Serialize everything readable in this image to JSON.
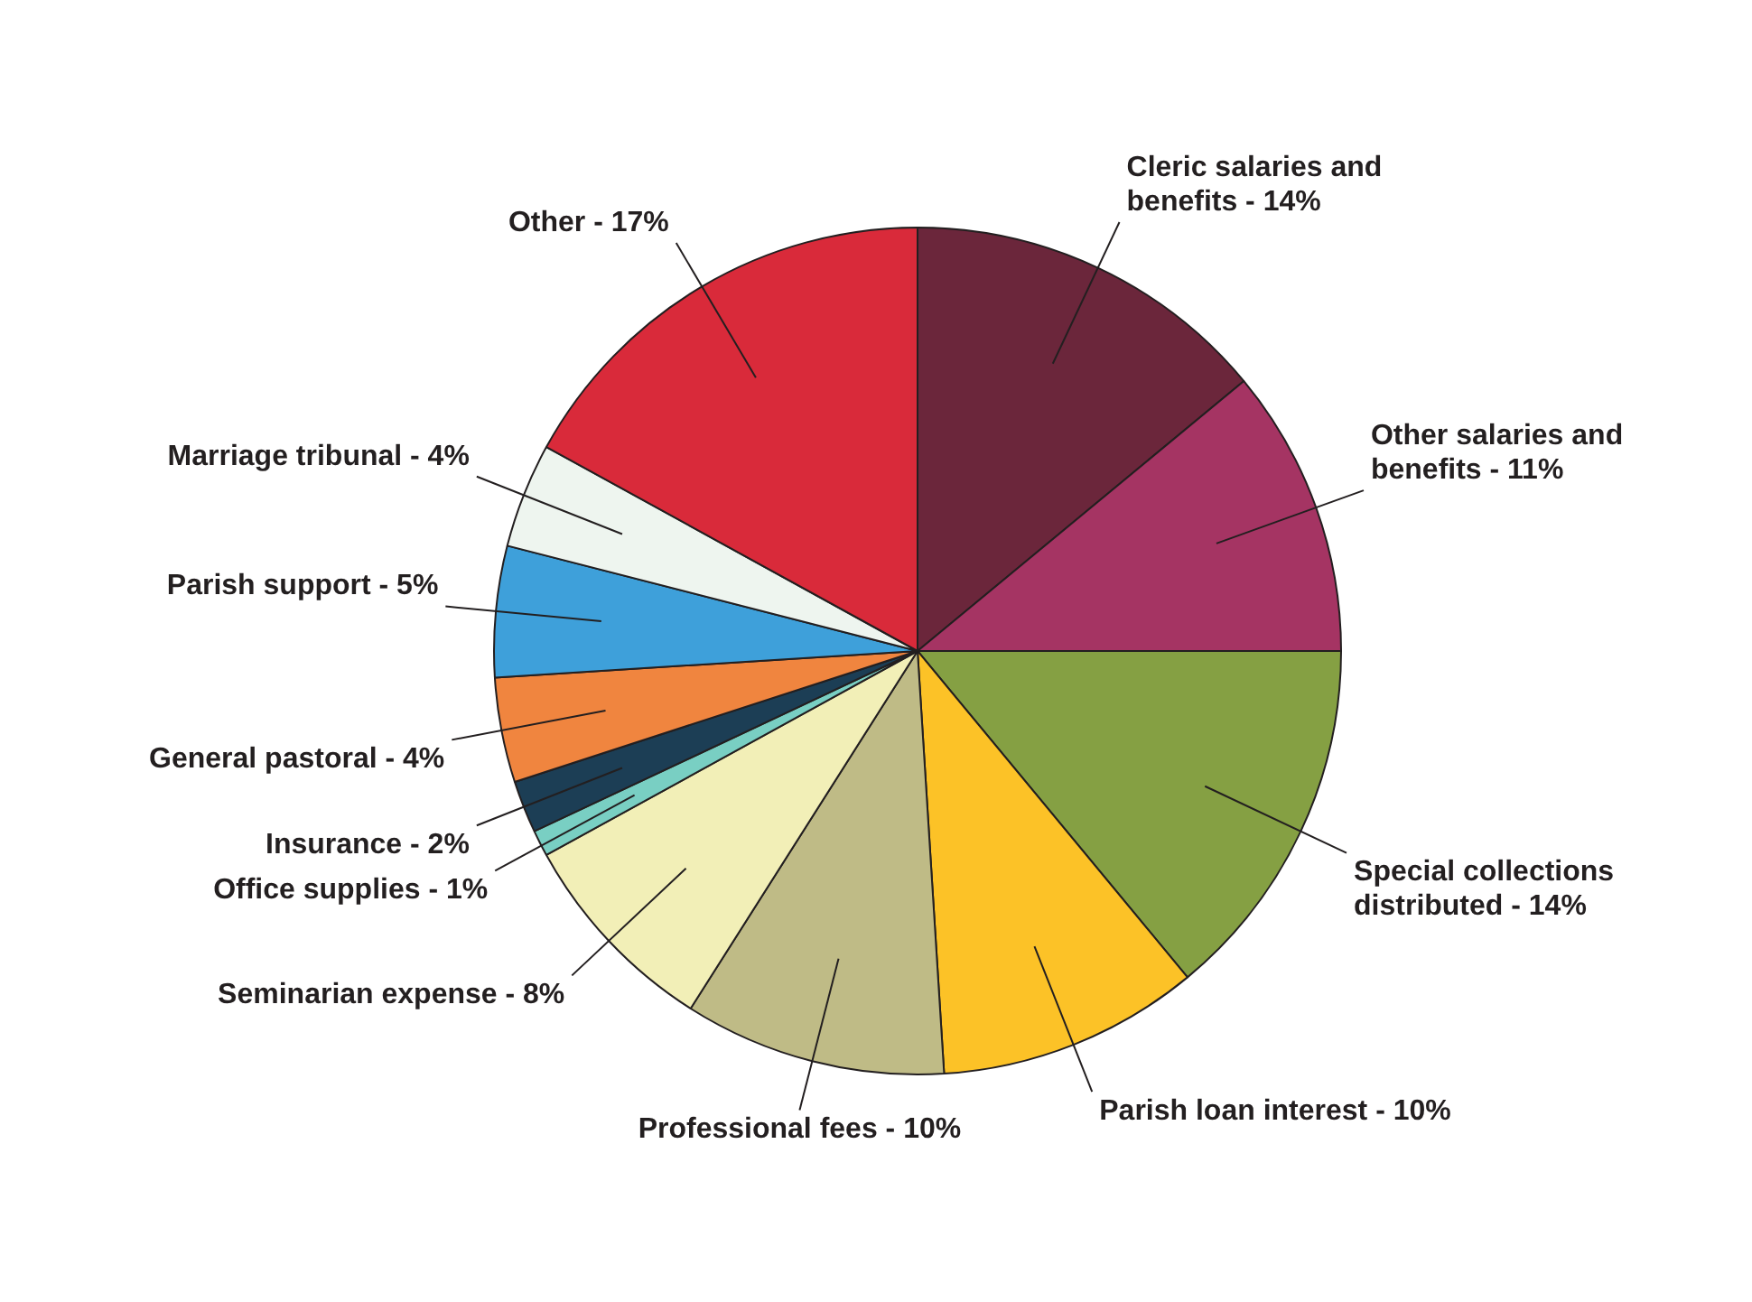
{
  "chart_data": {
    "type": "pie",
    "categories": [
      "Cleric salaries and benefits",
      "Other salaries and benefits",
      "Special collections distributed",
      "Parish loan interest",
      "Professional fees",
      "Seminarian expense",
      "Office supplies",
      "Insurance",
      "General pastoral",
      "Parish support",
      "Marriage tribunal",
      "Other"
    ],
    "values": [
      14,
      11,
      14,
      10,
      10,
      8,
      1,
      2,
      4,
      5,
      4,
      17
    ],
    "value_labels": [
      "14%",
      "11%",
      "14%",
      "10%",
      "10%",
      "8%",
      "1%",
      "2%",
      "4%",
      "5%",
      "4%",
      "17%"
    ],
    "colors": [
      "#6b263b",
      "#a53463",
      "#85a043",
      "#fcc227",
      "#bfbb86",
      "#f2efb7",
      "#79cfc3",
      "#1c3e55",
      "#f0853f",
      "#3ea0da",
      "#eef5ef",
      "#d92a3a"
    ],
    "legend": false
  }
}
